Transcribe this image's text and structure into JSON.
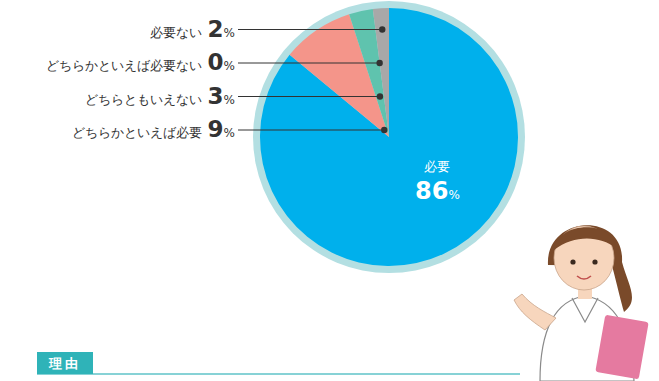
{
  "chart_data": {
    "type": "pie",
    "categories": [
      "必要",
      "どちらかといえば必要",
      "どちらともいえない",
      "どちらかといえば必要ない",
      "必要ない"
    ],
    "values": [
      86,
      9,
      3,
      0,
      2
    ],
    "value_labels": [
      "86%",
      "9%",
      "3%",
      "0%",
      "2%"
    ],
    "colors": [
      "#00b0ec",
      "#f4958a",
      "#5fc3ae",
      "#b58ac4",
      "#a8a8a8"
    ],
    "data_labels": true,
    "annotations": [
      "理由"
    ]
  }
}
